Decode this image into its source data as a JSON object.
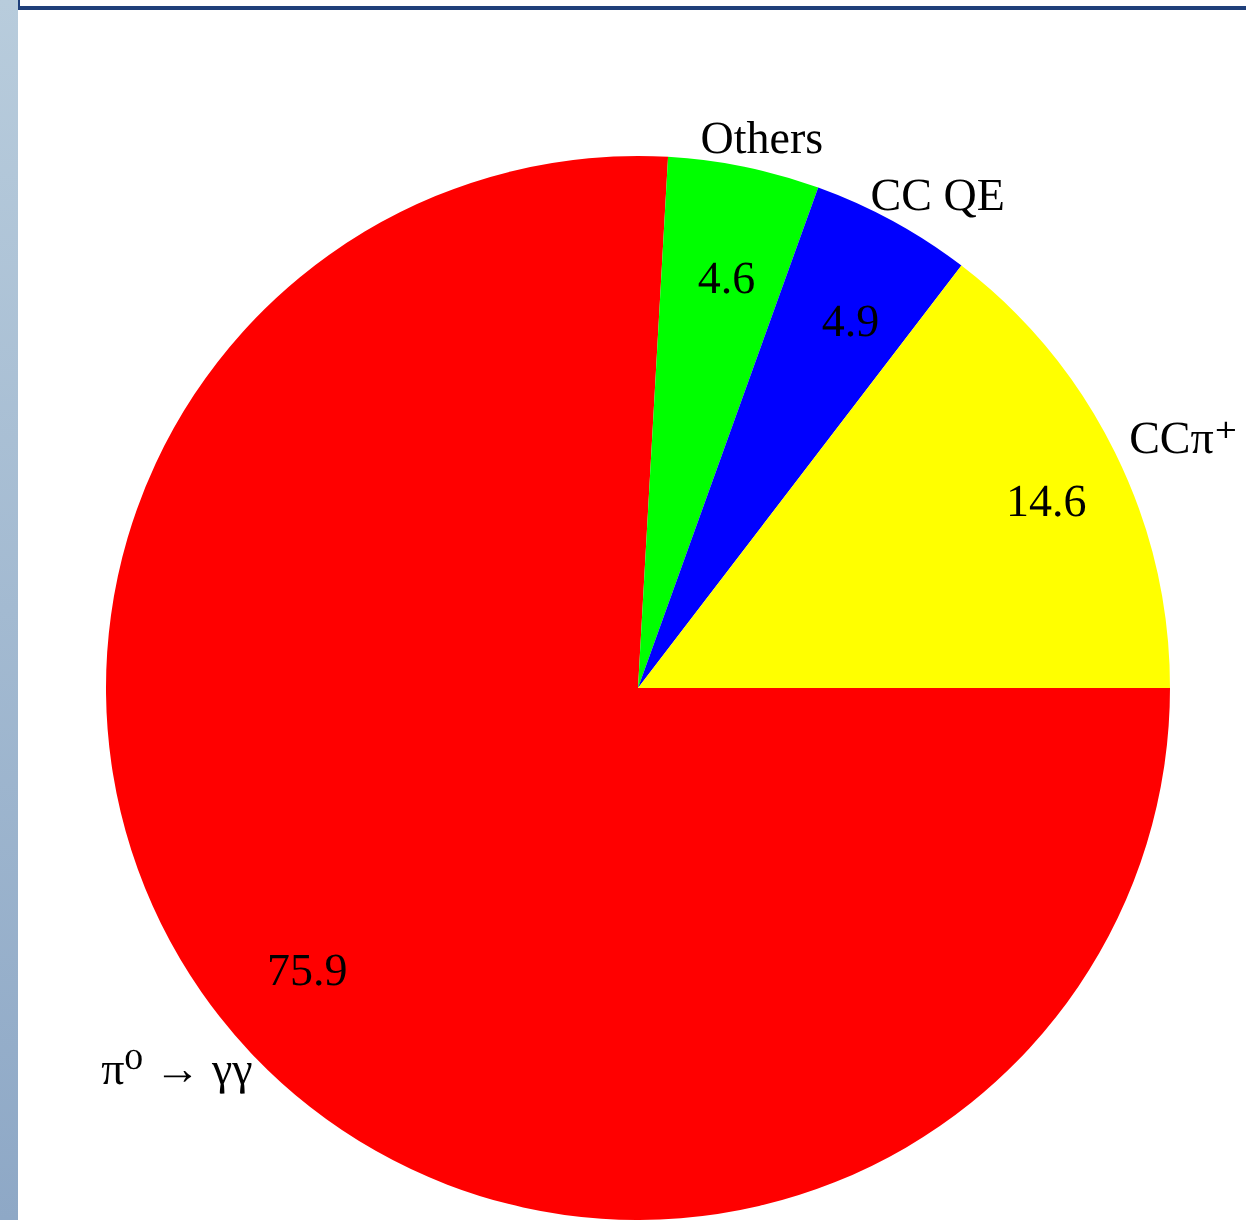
{
  "chart_data": {
    "type": "pie",
    "categories": [
      "π⁰ → γγ",
      "Others",
      "CC QE",
      "CCπ⁺"
    ],
    "values": [
      75.9,
      4.6,
      4.9,
      14.6
    ],
    "colors": [
      "#ff0000",
      "#00ff00",
      "#0000ff",
      "#ffff00"
    ],
    "data_labels": true
  }
}
